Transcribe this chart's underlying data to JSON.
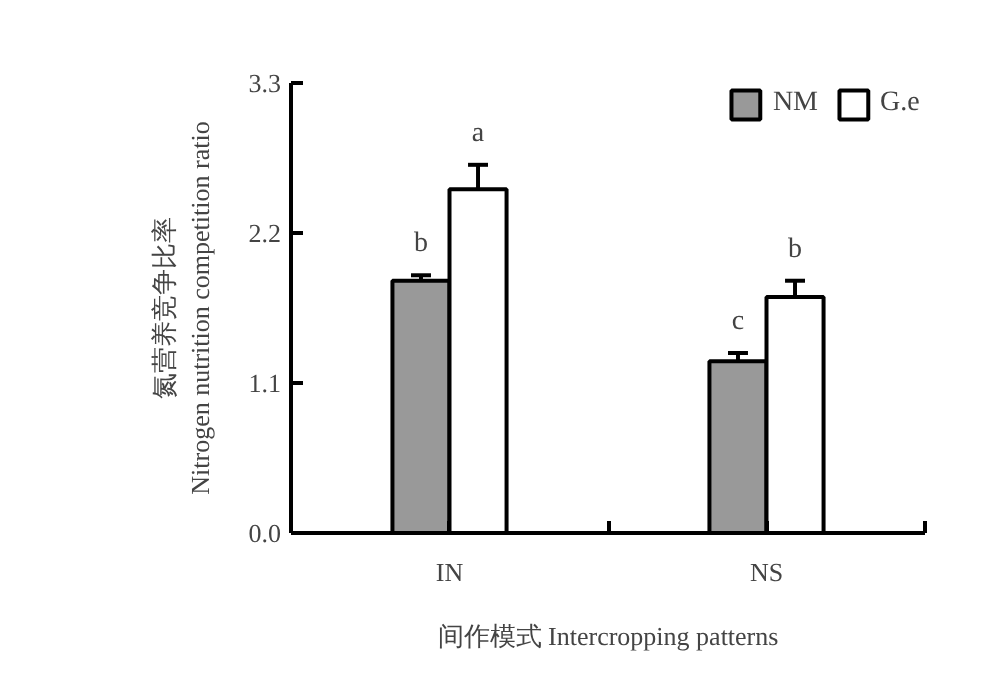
{
  "chart_data": {
    "type": "bar",
    "xlabel": "间作模式 Intercropping patterns",
    "ylabel": "氮营养竞争比率\nNitrogen nutrition competition ratio",
    "categories": [
      "IN",
      "NS"
    ],
    "series": [
      {
        "name": "NM",
        "color": "#999999",
        "values": [
          1.85,
          1.26
        ],
        "errors": [
          0.04,
          0.06
        ],
        "value_labels": [
          "b",
          "c"
        ]
      },
      {
        "name": "G.e",
        "color": "#ffffff",
        "values": [
          2.52,
          1.73
        ],
        "errors": [
          0.18,
          0.12
        ],
        "value_labels": [
          "a",
          "b"
        ]
      }
    ],
    "ylim": [
      0,
      3.3
    ],
    "yticks": [
      {
        "value": 0,
        "label": "0.0"
      },
      1.1,
      2.2,
      3.3
    ],
    "grid": false,
    "legend": "top right"
  }
}
